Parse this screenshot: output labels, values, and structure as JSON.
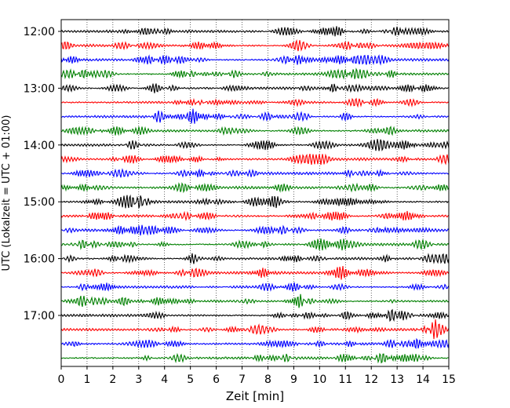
{
  "chart_data": {
    "type": "line",
    "title": "",
    "xlabel": "Zeit  [min]",
    "ylabel": "UTC (Lokalzeit = UTC + 01:00)",
    "xlim": [
      0,
      15
    ],
    "x_ticks": [
      "0",
      "1",
      "2",
      "3",
      "4",
      "5",
      "6",
      "7",
      "8",
      "9",
      "10",
      "11",
      "12",
      "13",
      "14",
      "15"
    ],
    "y_ticks": [
      "12:00",
      "13:00",
      "14:00",
      "15:00",
      "16:00",
      "17:00"
    ],
    "trace_interval_min": 15,
    "start_time": "12:00",
    "end_time": "17:45",
    "trace_count": 24,
    "trace_colors": [
      "#000000",
      "#ff0000",
      "#0000ff",
      "#008000"
    ],
    "grid": "vertical dotted",
    "legend": "none"
  }
}
